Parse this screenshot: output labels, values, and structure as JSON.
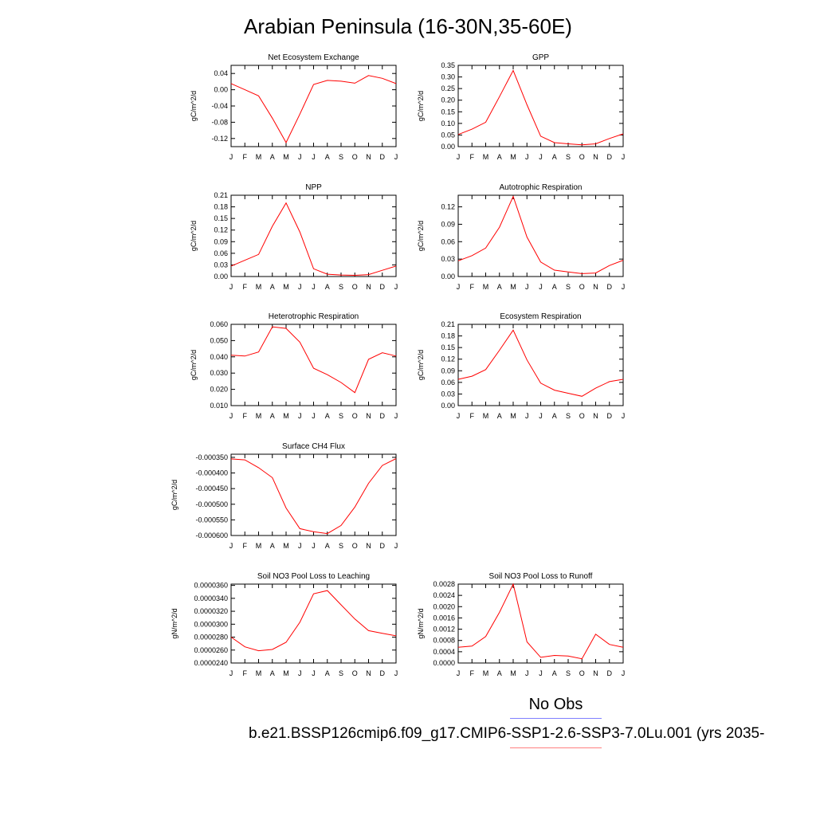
{
  "title": "Arabian Peninsula (16-30N,35-60E)",
  "months": [
    "J",
    "F",
    "M",
    "A",
    "M",
    "J",
    "J",
    "A",
    "S",
    "O",
    "N",
    "D",
    "J"
  ],
  "legend": {
    "obs_label": "No Obs",
    "obs_color": "#7f7fff",
    "model_label": "b.e21.BSSP126cmip6.f09_g17.CMIP6-SSP1-2.6-SSP3-7.0Lu.001 (yrs 2035-",
    "model_color": "#ff7f7f"
  },
  "line_color": "#ff0000",
  "chart_data": [
    {
      "type": "line",
      "title": "Net Ecosystem Exchange",
      "ylabel": "gC/m^2/d",
      "ylim": [
        -0.14,
        0.06
      ],
      "yticks": [
        0.04,
        0.0,
        -0.04,
        -0.08,
        -0.12
      ],
      "ytick_labels": [
        "0.04",
        "0.00",
        "-0.04",
        "-0.08",
        "-0.12"
      ],
      "values": [
        0.015,
        0.0,
        -0.015,
        -0.07,
        -0.13,
        -0.06,
        0.013,
        0.023,
        0.021,
        0.016,
        0.035,
        0.028,
        0.015
      ]
    },
    {
      "type": "line",
      "title": "GPP",
      "ylabel": "gC/m^2/d",
      "ylim": [
        0.0,
        0.35
      ],
      "yticks": [
        0.35,
        0.3,
        0.25,
        0.2,
        0.15,
        0.1,
        0.05,
        0.0
      ],
      "ytick_labels": [
        "0.35",
        "0.30",
        "0.25",
        "0.20",
        "0.15",
        "0.10",
        "0.05",
        "0.00"
      ],
      "values": [
        0.052,
        0.075,
        0.105,
        0.215,
        0.328,
        0.18,
        0.045,
        0.017,
        0.012,
        0.008,
        0.012,
        0.035,
        0.055
      ]
    },
    {
      "type": "line",
      "title": "NPP",
      "ylabel": "gC/m^2/d",
      "ylim": [
        0.0,
        0.21
      ],
      "yticks": [
        0.21,
        0.18,
        0.15,
        0.12,
        0.09,
        0.06,
        0.03,
        0.0
      ],
      "ytick_labels": [
        "0.21",
        "0.18",
        "0.15",
        "0.12",
        "0.09",
        "0.06",
        "0.03",
        "0.00"
      ],
      "values": [
        0.027,
        0.042,
        0.057,
        0.13,
        0.19,
        0.115,
        0.02,
        0.006,
        0.004,
        0.003,
        0.005,
        0.016,
        0.027
      ]
    },
    {
      "type": "line",
      "title": "Autotrophic Respiration",
      "ylabel": "gC/m^2/d",
      "ylim": [
        0.0,
        0.14
      ],
      "yticks": [
        0.12,
        0.09,
        0.06,
        0.03,
        0.0
      ],
      "ytick_labels": [
        "0.12",
        "0.09",
        "0.06",
        "0.03",
        "0.00"
      ],
      "values": [
        0.027,
        0.036,
        0.049,
        0.085,
        0.138,
        0.068,
        0.025,
        0.011,
        0.008,
        0.005,
        0.006,
        0.019,
        0.028
      ]
    },
    {
      "type": "line",
      "title": "Heterotrophic Respiration",
      "ylabel": "gC/m^2/d",
      "ylim": [
        0.01,
        0.06
      ],
      "yticks": [
        0.06,
        0.05,
        0.04,
        0.03,
        0.02,
        0.01
      ],
      "ytick_labels": [
        "0.060",
        "0.050",
        "0.040",
        "0.030",
        "0.020",
        "0.010"
      ],
      "values": [
        0.041,
        0.0405,
        0.043,
        0.0585,
        0.0575,
        0.049,
        0.033,
        0.029,
        0.0242,
        0.018,
        0.0385,
        0.0425,
        0.0405
      ]
    },
    {
      "type": "line",
      "title": "Ecosystem Respiration",
      "ylabel": "gC/m^2/d",
      "ylim": [
        0.0,
        0.21
      ],
      "yticks": [
        0.21,
        0.18,
        0.15,
        0.12,
        0.09,
        0.06,
        0.03,
        0.0
      ],
      "ytick_labels": [
        "0.21",
        "0.18",
        "0.15",
        "0.12",
        "0.09",
        "0.06",
        "0.03",
        "0.00"
      ],
      "values": [
        0.068,
        0.076,
        0.093,
        0.143,
        0.195,
        0.118,
        0.058,
        0.04,
        0.032,
        0.024,
        0.045,
        0.062,
        0.068
      ]
    },
    {
      "type": "line",
      "title": "Surface CH4 Flux",
      "ylabel": "gC/m^2/d",
      "ylim": [
        -0.0006,
        -0.00034
      ],
      "yticks": [
        -0.00035,
        -0.0004,
        -0.00045,
        -0.0005,
        -0.00055,
        -0.0006
      ],
      "ytick_labels": [
        "-0.000350",
        "-0.000400",
        "-0.000450",
        "-0.000500",
        "-0.000550",
        "-0.000600"
      ],
      "values": [
        -0.000355,
        -0.000358,
        -0.000383,
        -0.000415,
        -0.000512,
        -0.000578,
        -0.000588,
        -0.000594,
        -0.000568,
        -0.000509,
        -0.000433,
        -0.000376,
        -0.000354
      ]
    },
    {
      "type": "line",
      "title": "Soil NO3 Pool Loss to Leaching",
      "ylabel": "gN/m^2/d",
      "ylim": [
        2.4e-05,
        3.62e-05
      ],
      "yticks": [
        3.6e-05,
        3.4e-05,
        3.2e-05,
        3e-05,
        2.8e-05,
        2.6e-05,
        2.4e-05
      ],
      "ytick_labels": [
        "0.0000360",
        "0.0000340",
        "0.0000320",
        "0.0000300",
        "0.0000280",
        "0.0000260",
        "0.0000240"
      ],
      "values": [
        2.8e-05,
        2.65e-05,
        2.59e-05,
        2.61e-05,
        2.72e-05,
        3.03e-05,
        3.47e-05,
        3.52e-05,
        3.3e-05,
        3.08e-05,
        2.9e-05,
        2.86e-05,
        2.82e-05
      ]
    },
    {
      "type": "line",
      "title": "Soil NO3 Pool Loss to Runoff",
      "ylabel": "gN/m^2/d",
      "ylim": [
        0.0,
        0.0028
      ],
      "yticks": [
        0.0028,
        0.0024,
        0.002,
        0.0016,
        0.0012,
        0.0008,
        0.0004,
        0.0
      ],
      "ytick_labels": [
        "0.0028",
        "0.0024",
        "0.0020",
        "0.0016",
        "0.0012",
        "0.0008",
        "0.0004",
        "0.0000"
      ],
      "values": [
        0.00056,
        0.0006,
        0.00094,
        0.0018,
        0.0028,
        0.00075,
        0.0002,
        0.00027,
        0.00025,
        0.00015,
        0.00102,
        0.00066,
        0.00056
      ]
    }
  ]
}
